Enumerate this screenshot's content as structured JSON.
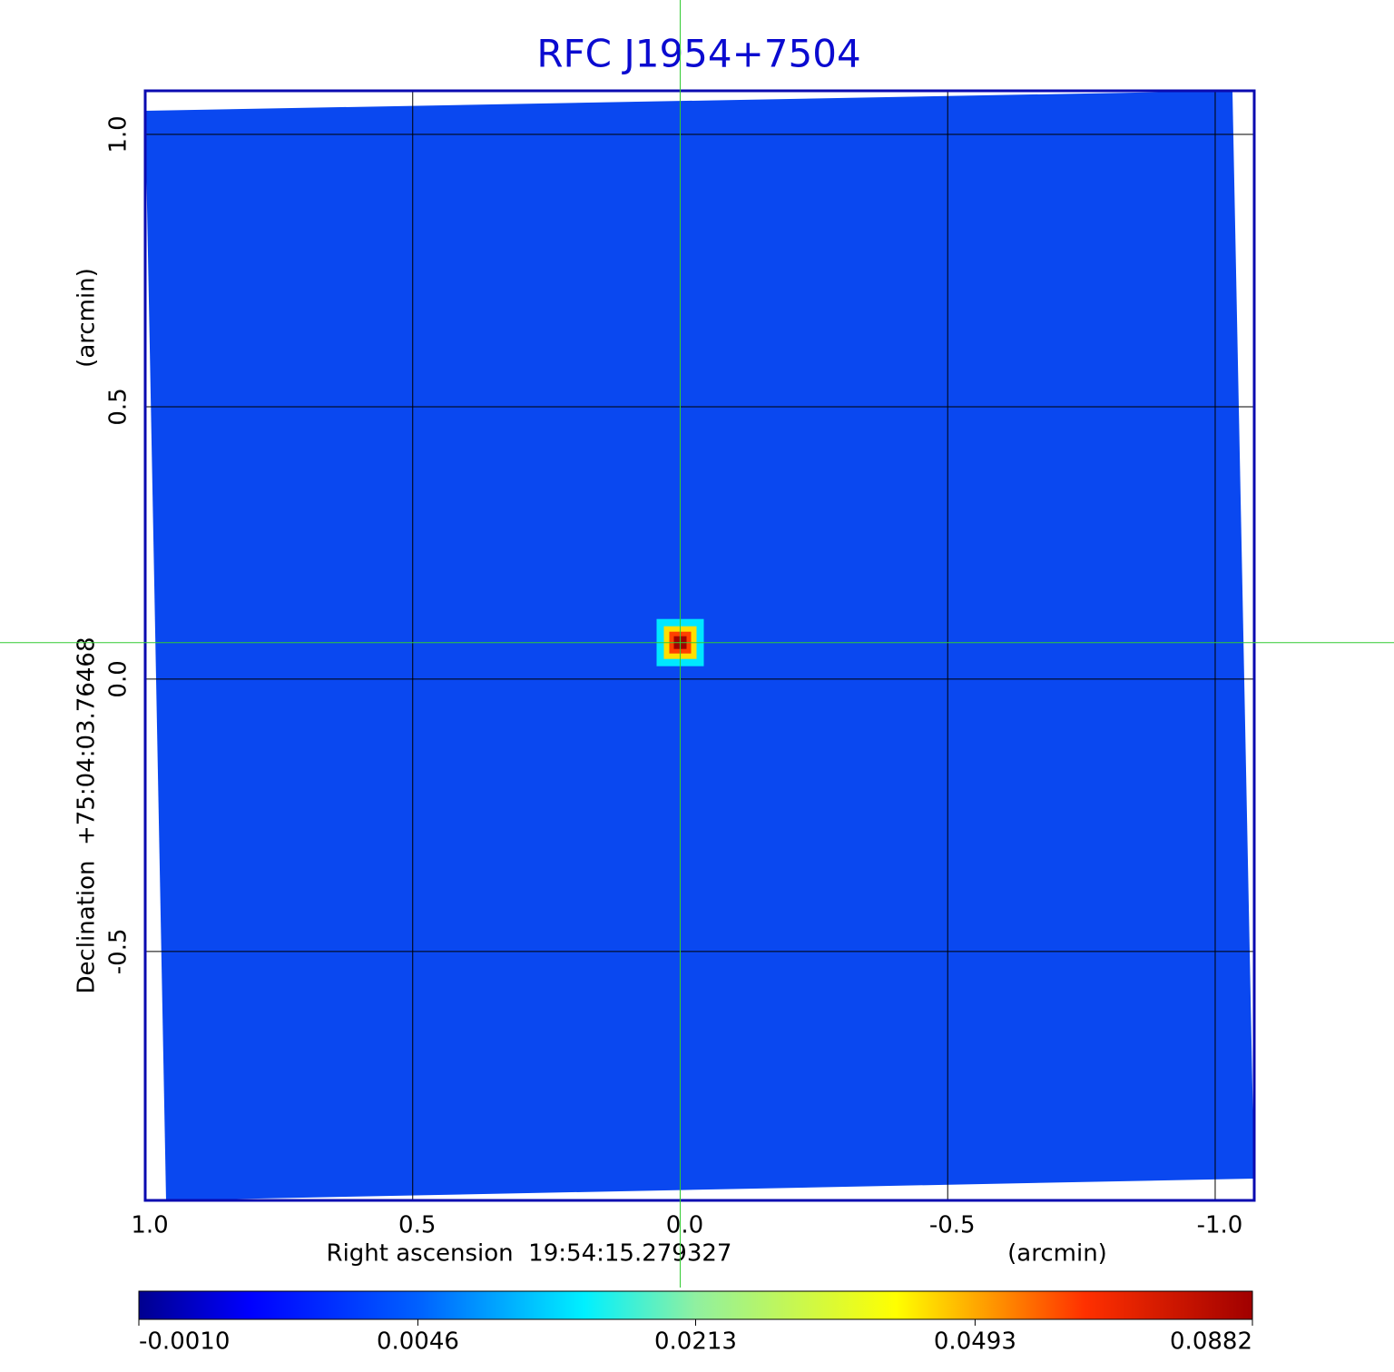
{
  "chart_data": {
    "type": "image",
    "title": "RFC J1954+7504",
    "x_label": "Right ascension  19:54:15.279327",
    "x_unit": "(arcmin)",
    "y_label": "Declination  +75:04:03.76468",
    "y_unit": "(arcmin)",
    "xlim": [
      1.0,
      -1.073
    ],
    "ylim": [
      -0.957,
      1.08
    ],
    "xticks": [
      {
        "value": 1.0,
        "label": "1.0"
      },
      0.5,
      {
        "value": 0.0,
        "label": "0.0"
      },
      -0.5,
      {
        "value": -1.0,
        "label": "-1.0"
      }
    ],
    "yticks": [
      {
        "value": 1.0,
        "label": "1.0"
      },
      0.5,
      {
        "value": 0.0,
        "label": "0.0"
      },
      -0.5
    ],
    "grid": true,
    "source": {
      "x": 0.0,
      "y": 0.067,
      "peak": 0.0882
    },
    "colorbar": {
      "scale": "sqrt",
      "clim": [
        -0.001,
        0.0882
      ],
      "ticks": [
        {
          "value": -0.001,
          "label": "-0.0010"
        },
        0.0046,
        0.0213,
        0.0493,
        0.0882
      ]
    }
  }
}
